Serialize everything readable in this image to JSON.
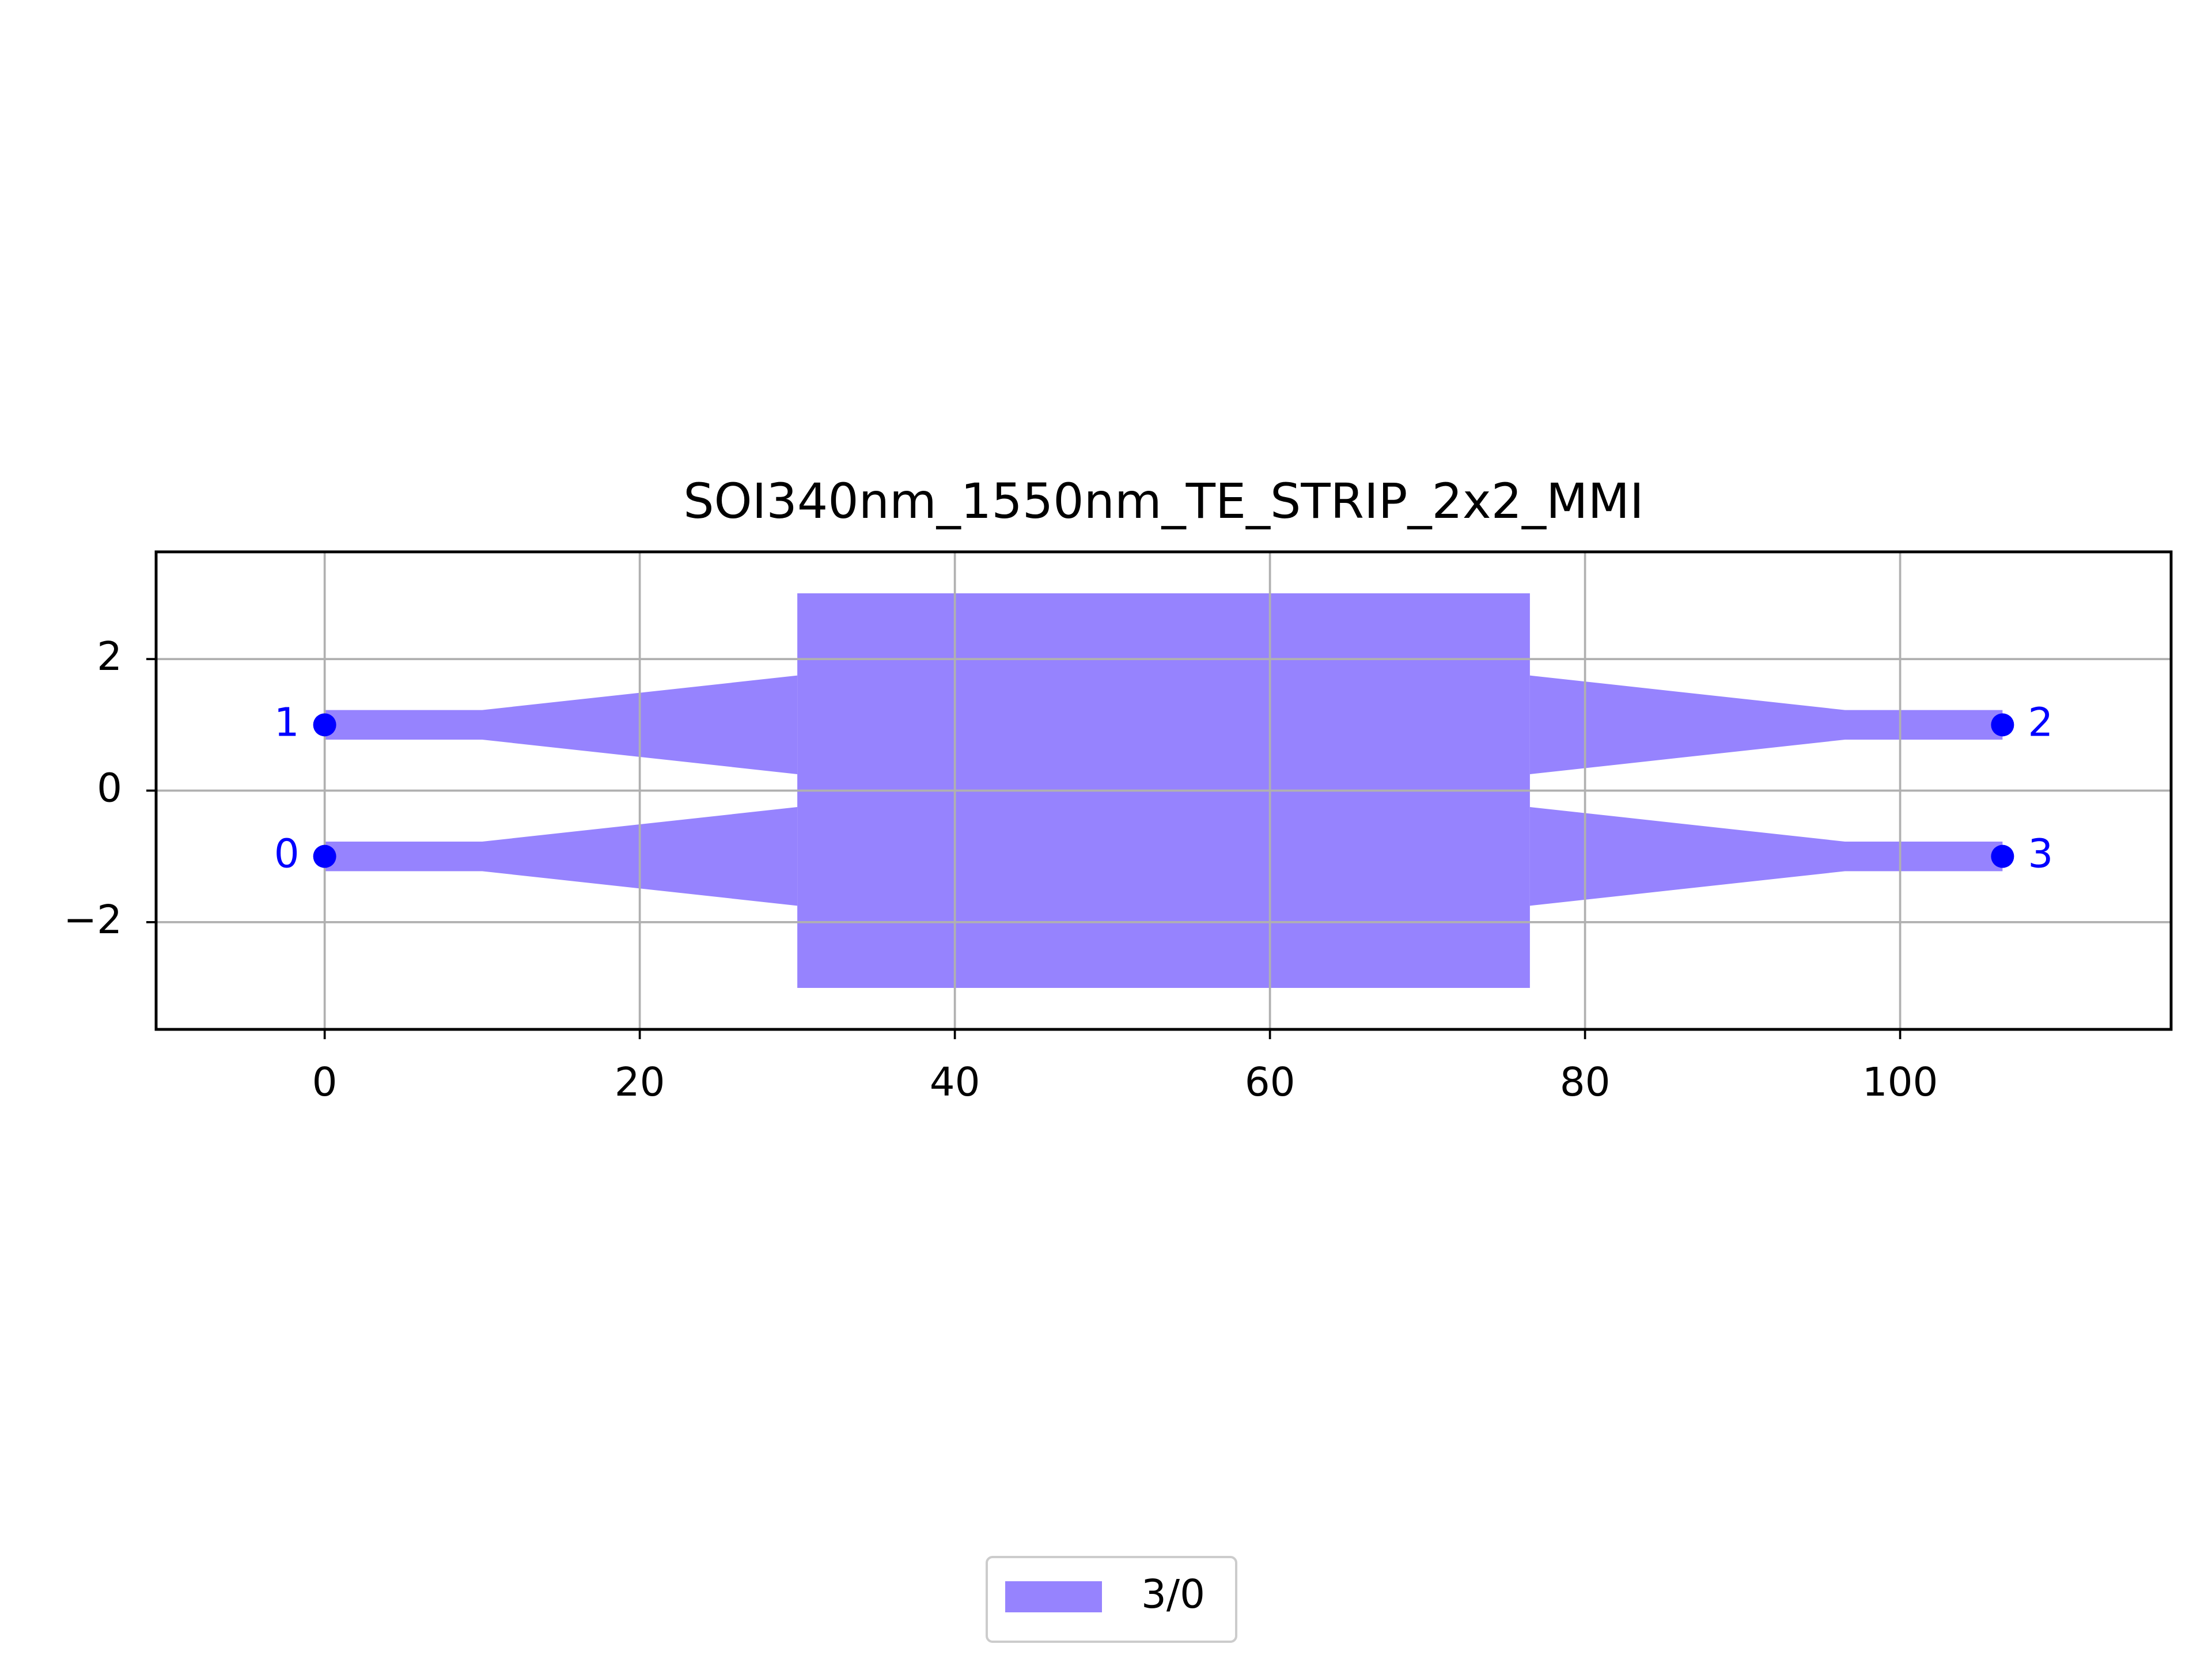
{
  "chart_data": {
    "type": "polygon",
    "title": "SOI340nm_1550nm_TE_STRIP_2x2_MMI",
    "xlim": [
      -10.7,
      117.2
    ],
    "ylim": [
      -3.63,
      3.63
    ],
    "xticks": [
      0,
      20,
      40,
      60,
      80,
      100
    ],
    "yticks": [
      {
        "value": -2,
        "label": "−2"
      },
      0,
      2
    ],
    "grid": true,
    "legend_loc": "lower center",
    "series": [
      {
        "name": "3/0",
        "color": "#9683fe",
        "polygons": [
          {
            "x": [
              30,
              76.5,
              76.5,
              30
            ],
            "y": [
              3,
              3,
              -3,
              -3
            ]
          },
          {
            "x": [
              0,
              10,
              30,
              30,
              10,
              0
            ],
            "y": [
              1.225,
              1.225,
              1.75,
              0.25,
              0.775,
              0.775
            ]
          },
          {
            "x": [
              0,
              10,
              30,
              30,
              10,
              0
            ],
            "y": [
              -0.775,
              -0.775,
              -0.25,
              -1.75,
              -1.225,
              -1.225
            ]
          },
          {
            "x": [
              76.5,
              96.5,
              106.5,
              106.5,
              96.5,
              76.5
            ],
            "y": [
              1.75,
              1.225,
              1.225,
              0.775,
              0.775,
              0.25
            ]
          },
          {
            "x": [
              76.5,
              96.5,
              106.5,
              106.5,
              96.5,
              76.5
            ],
            "y": [
              -0.25,
              -0.775,
              -0.775,
              -1.225,
              -1.225,
              -1.75
            ]
          }
        ]
      }
    ],
    "ports": {
      "labels": [
        "1",
        "0",
        "2",
        "3"
      ],
      "x": [
        0,
        0,
        106.5,
        106.5
      ],
      "y": [
        1,
        -1,
        1,
        -1
      ],
      "color": "#0000ff"
    }
  }
}
